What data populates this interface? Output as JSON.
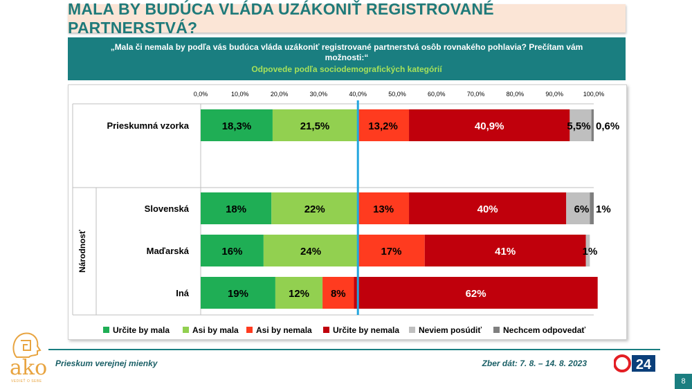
{
  "title": "MALA BY BUDÚCA VLÁDA UZÁKONIŤ REGISTROVANÉ PARTNERSTVÁ?",
  "question": "„Mala či nemala by podľa vás budúca vláda uzákoniť registrované partnerstvá osôb rovnakého pohlavia? Prečítam vám možnosti:“",
  "subtitle": "Odpovede podľa sociodemografických kategórií",
  "footer": {
    "survey": "Prieskum verejnej mienky",
    "date": "Zber dát: 7. 8. – 14. 8. 2023",
    "page": "8",
    "logo_text": "ako",
    "logo_tagline": "VEDIEŤ O SEBE",
    "brand_logo": "24"
  },
  "chart_data": {
    "type": "bar",
    "orientation": "horizontal-stacked",
    "xlim": [
      0,
      100
    ],
    "x_ticks": [
      "0,0%",
      "10,0%",
      "20,0%",
      "30,0%",
      "40,0%",
      "50,0%",
      "60,0%",
      "70,0%",
      "80,0%",
      "90,0%",
      "100,0%"
    ],
    "reference_line": 40,
    "group_label": "Národnosť",
    "categories": [
      "Prieskumná vzorka",
      "Slovenská",
      "Maďarská",
      "Iná"
    ],
    "series": [
      {
        "name": "Určite by mala",
        "color": "#1fae55",
        "values": [
          18.3,
          18,
          16,
          19
        ],
        "labels": [
          "18,3%",
          "18%",
          "16%",
          "19%"
        ]
      },
      {
        "name": "Asi by mala",
        "color": "#92d050",
        "values": [
          21.5,
          22,
          24,
          12
        ],
        "labels": [
          "21,5%",
          "22%",
          "24%",
          "12%"
        ]
      },
      {
        "name": "Asi by nemala",
        "color": "#ff3b1f",
        "values": [
          13.2,
          13,
          17,
          8
        ],
        "labels": [
          "13,2%",
          "13%",
          "17%",
          "8%"
        ]
      },
      {
        "name": "Určite by nemala",
        "color": "#c0000c",
        "values": [
          40.9,
          40,
          41,
          62
        ],
        "labels": [
          "40,9%",
          "40%",
          "41%",
          "62%"
        ]
      },
      {
        "name": "Neviem posúdiť",
        "color": "#bfbfbf",
        "values": [
          5.5,
          6,
          1,
          0
        ],
        "labels": [
          "5,5%",
          "6%",
          "1%",
          ""
        ]
      },
      {
        "name": "Nechcem odpovedať",
        "color": "#7f7f7f",
        "values": [
          0.6,
          1,
          0,
          0
        ],
        "labels": [
          "0,6%",
          "1%",
          "",
          ""
        ]
      }
    ]
  }
}
